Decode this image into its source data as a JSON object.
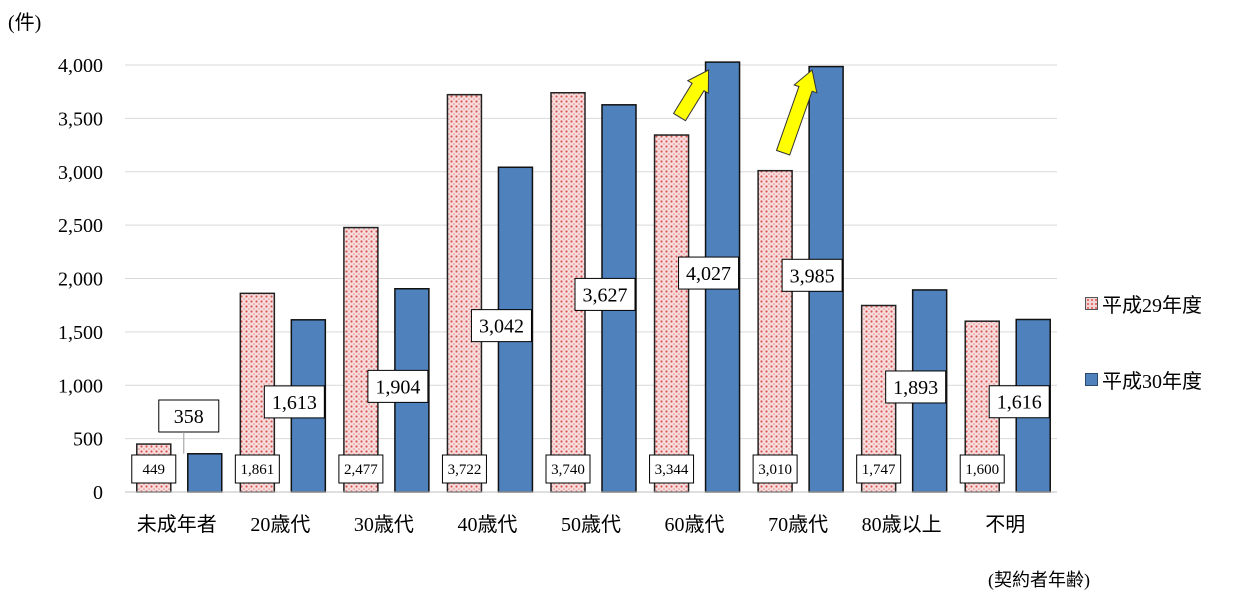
{
  "unit_label": "(件)",
  "x_axis_title": "(契約者年齢)",
  "chart_data": {
    "type": "bar",
    "ylabel": "(件)",
    "xlabel": "(契約者年齢)",
    "ylim": [
      0,
      4000
    ],
    "yticks": [
      "0",
      "500",
      "1,000",
      "1,500",
      "2,000",
      "2,500",
      "3,000",
      "3,500",
      "4,000"
    ],
    "categories": [
      "未成年者",
      "20歳代",
      "30歳代",
      "40歳代",
      "50歳代",
      "60歳代",
      "70歳代",
      "80歳以上",
      "不明"
    ],
    "series": [
      {
        "name": "平成29年度",
        "values": [
          449,
          1861,
          2477,
          3722,
          3740,
          3344,
          3010,
          1747,
          1600
        ],
        "labels": [
          "449",
          "1,861",
          "2,477",
          "3,722",
          "3,740",
          "3,344",
          "3,010",
          "1,747",
          "1,600"
        ]
      },
      {
        "name": "平成30年度",
        "values": [
          358,
          1613,
          1904,
          3042,
          3627,
          4027,
          3985,
          1893,
          1616
        ],
        "labels": [
          "358",
          "1,613",
          "1,904",
          "3,042",
          "3,627",
          "4,027",
          "3,985",
          "1,893",
          "1,616"
        ]
      }
    ],
    "legend_position": "right",
    "grid": true,
    "highlight_arrows": [
      "60歳代",
      "70歳代"
    ],
    "colors": {
      "series_2017": "#f3d4d4",
      "series_2017_dots": "#d9534f",
      "series_2018": "#4f81bd",
      "arrow": "#ffff00"
    }
  }
}
